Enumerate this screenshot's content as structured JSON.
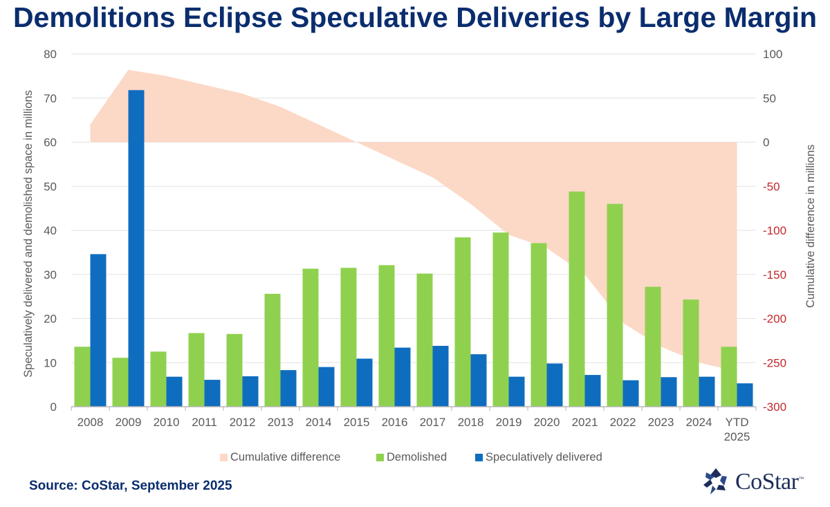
{
  "title": "Demolitions Eclipse Speculative Deliveries by Large Margin",
  "source": "Source: CoStar, September 2025",
  "logo": {
    "text": "CoStar",
    "tm": "™",
    "icon": "costar-star-icon"
  },
  "colors": {
    "title": "#0a2d6e",
    "demolished": "#8fd14f",
    "delivered": "#0f6dbf",
    "cumulative": "#fcd8c6",
    "grid": "#e2e2e2",
    "axis_text": "#595959",
    "negative_tick": "#c0282c"
  },
  "chart_data": {
    "type": "bar",
    "title": "Demolitions Eclipse Speculative Deliveries by Large Margin",
    "categories": [
      "2008",
      "2009",
      "2010",
      "2011",
      "2012",
      "2013",
      "2014",
      "2015",
      "2016",
      "2017",
      "2018",
      "2019",
      "2020",
      "2021",
      "2022",
      "2023",
      "2024",
      "YTD 2025"
    ],
    "series": [
      {
        "name": "Cumulative difference",
        "kind": "area",
        "axis": "right",
        "values": [
          20,
          82,
          75,
          65,
          55,
          40,
          20,
          0,
          -20,
          -40,
          -70,
          -105,
          -120,
          -150,
          -205,
          -232,
          -250,
          -260
        ]
      },
      {
        "name": "Demolished",
        "kind": "bar",
        "axis": "left",
        "values": [
          13.6,
          11.1,
          12.5,
          16.7,
          16.5,
          25.6,
          31.3,
          31.5,
          32.1,
          30.2,
          38.4,
          39.5,
          37.1,
          48.8,
          46.0,
          27.2,
          24.3,
          13.6
        ]
      },
      {
        "name": "Speculatively delivered",
        "kind": "bar",
        "axis": "left",
        "values": [
          34.6,
          71.8,
          6.8,
          6.1,
          6.9,
          8.3,
          9.0,
          10.9,
          13.4,
          13.8,
          11.9,
          6.8,
          9.8,
          7.2,
          6.0,
          6.7,
          6.8,
          5.3
        ]
      }
    ],
    "ylabel": "Speculatively delivered and demolished space in millions",
    "y2label": "Cumulative difference in millions",
    "ylim": [
      0,
      80
    ],
    "yticks": [
      "0",
      "10",
      "20",
      "30",
      "40",
      "50",
      "60",
      "70",
      "80"
    ],
    "y2lim": [
      -300,
      100
    ],
    "y2ticks": [
      "-300",
      "-250",
      "-200",
      "-150",
      "-100",
      "-50",
      "0",
      "50",
      "100"
    ],
    "grid": true,
    "legend": {
      "position": "bottom",
      "entries": [
        "Cumulative difference",
        "Demolished",
        "Speculatively delivered"
      ]
    }
  }
}
